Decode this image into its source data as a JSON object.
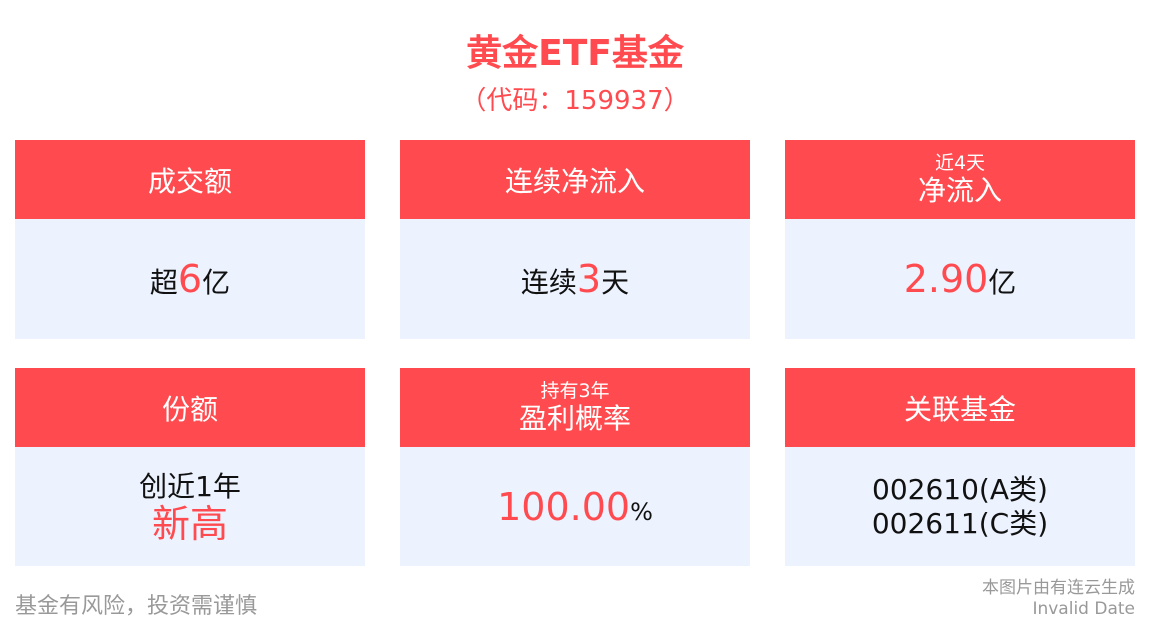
{
  "header": {
    "title": "黄金ETF基金",
    "code": "（代码：159937）"
  },
  "cards": [
    {
      "title": "成交额",
      "value_prefix": "超",
      "value_highlight": "6",
      "value_suffix": "亿"
    },
    {
      "title": "连续净流入",
      "value_prefix": "连续",
      "value_highlight": "3",
      "value_suffix": "天"
    },
    {
      "subtitle": "近4天",
      "title": "净流入",
      "value_highlight": "2.90",
      "value_suffix": "亿"
    },
    {
      "title": "份额",
      "value_line1": "创近1年",
      "value_highlight": "新高"
    },
    {
      "subtitle": "持有3年",
      "title": "盈利概率",
      "value_highlight": "100.00",
      "value_suffix": "%"
    },
    {
      "title": "关联基金",
      "value_line1": "002610(A类)",
      "value_line2": "002611(C类)"
    }
  ],
  "footer": {
    "disclaimer": "基金有风险，投资需谨慎",
    "source": "本图片由有连云生成",
    "date": "Invalid Date"
  },
  "colors": {
    "accent": "#ff4b4f",
    "card_bg": "#ecf2fe"
  }
}
